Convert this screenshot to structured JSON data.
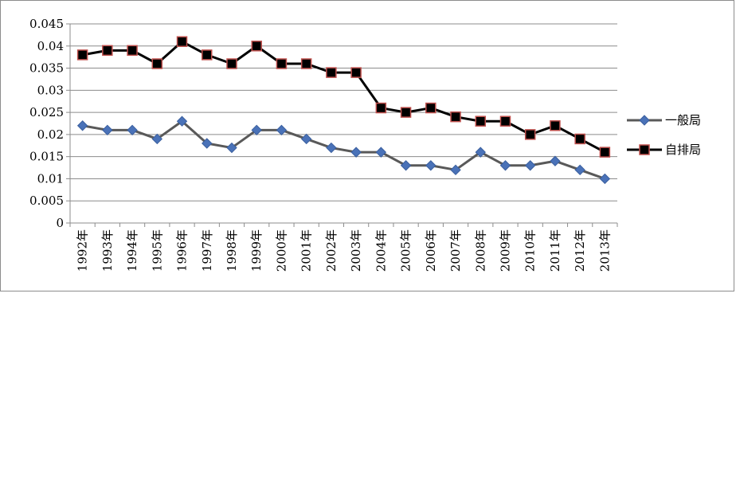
{
  "chart_data": {
    "type": "line",
    "categories": [
      "1992年",
      "1993年",
      "1994年",
      "1995年",
      "1996年",
      "1997年",
      "1998年",
      "1999年",
      "2000年",
      "2001年",
      "2002年",
      "2003年",
      "2004年",
      "2005年",
      "2006年",
      "2007年",
      "2008年",
      "2009年",
      "2010年",
      "2011年",
      "2012年",
      "2013年"
    ],
    "series": [
      {
        "name": "一般局",
        "color": "#595959",
        "marker": "diamond",
        "marker_fill": "#4a72b8",
        "values": [
          0.022,
          0.021,
          0.021,
          0.019,
          0.023,
          0.018,
          0.017,
          0.021,
          0.021,
          0.019,
          0.017,
          0.016,
          0.016,
          0.013,
          0.013,
          0.012,
          0.016,
          0.013,
          0.013,
          0.014,
          0.012,
          0.01
        ]
      },
      {
        "name": "自排局",
        "color": "#000000",
        "marker": "square",
        "marker_fill": "#000000",
        "marker_edge": "#c0504d",
        "values": [
          0.038,
          0.039,
          0.039,
          0.036,
          0.041,
          0.038,
          0.036,
          0.04,
          0.036,
          0.036,
          0.034,
          0.034,
          0.026,
          0.025,
          0.026,
          0.024,
          0.023,
          0.023,
          0.02,
          0.022,
          0.019,
          0.016
        ]
      }
    ],
    "yticks": [
      "0",
      "0.005",
      "0.01",
      "0.015",
      "0.02",
      "0.025",
      "0.03",
      "0.035",
      "0.04",
      "0.045"
    ],
    "ylim": [
      0,
      0.045
    ],
    "grid": true,
    "legend_position": "right",
    "title": "",
    "xlabel": "",
    "ylabel": ""
  }
}
